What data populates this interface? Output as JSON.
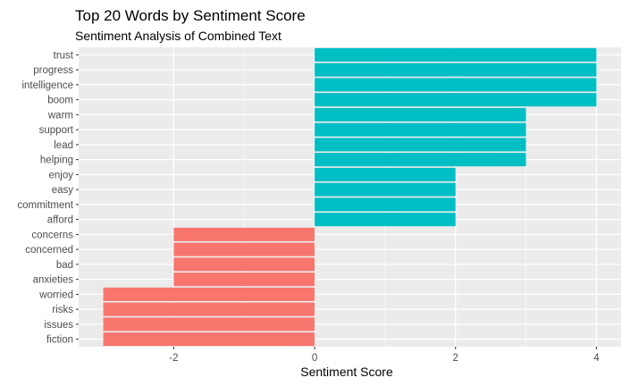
{
  "chart_data": {
    "type": "bar",
    "orientation": "horizontal",
    "title": "Top 20 Words by Sentiment Score",
    "subtitle": "Sentiment Analysis of Combined Text",
    "xlabel": "Sentiment Score",
    "ylabel": "",
    "xlim": [
      -3.35,
      4.35
    ],
    "xticks": [
      -2,
      0,
      2,
      4
    ],
    "grid": true,
    "legend": "none",
    "colors": {
      "positive": "#00BFC4",
      "negative": "#F8766D",
      "panel": "#EBEBEB",
      "grid_major": "#FFFFFF",
      "text": "#4D4D4D",
      "title": "#000000"
    },
    "categories": [
      "trust",
      "progress",
      "intelligence",
      "boom",
      "warm",
      "support",
      "lead",
      "helping",
      "enjoy",
      "easy",
      "commitment",
      "afford",
      "concerns",
      "concerned",
      "bad",
      "anxieties",
      "worried",
      "risks",
      "issues",
      "fiction"
    ],
    "values": [
      4,
      4,
      4,
      4,
      3,
      3,
      3,
      3,
      2,
      2,
      2,
      2,
      -2,
      -2,
      -2,
      -2,
      -3,
      -3,
      -3,
      -3
    ]
  }
}
